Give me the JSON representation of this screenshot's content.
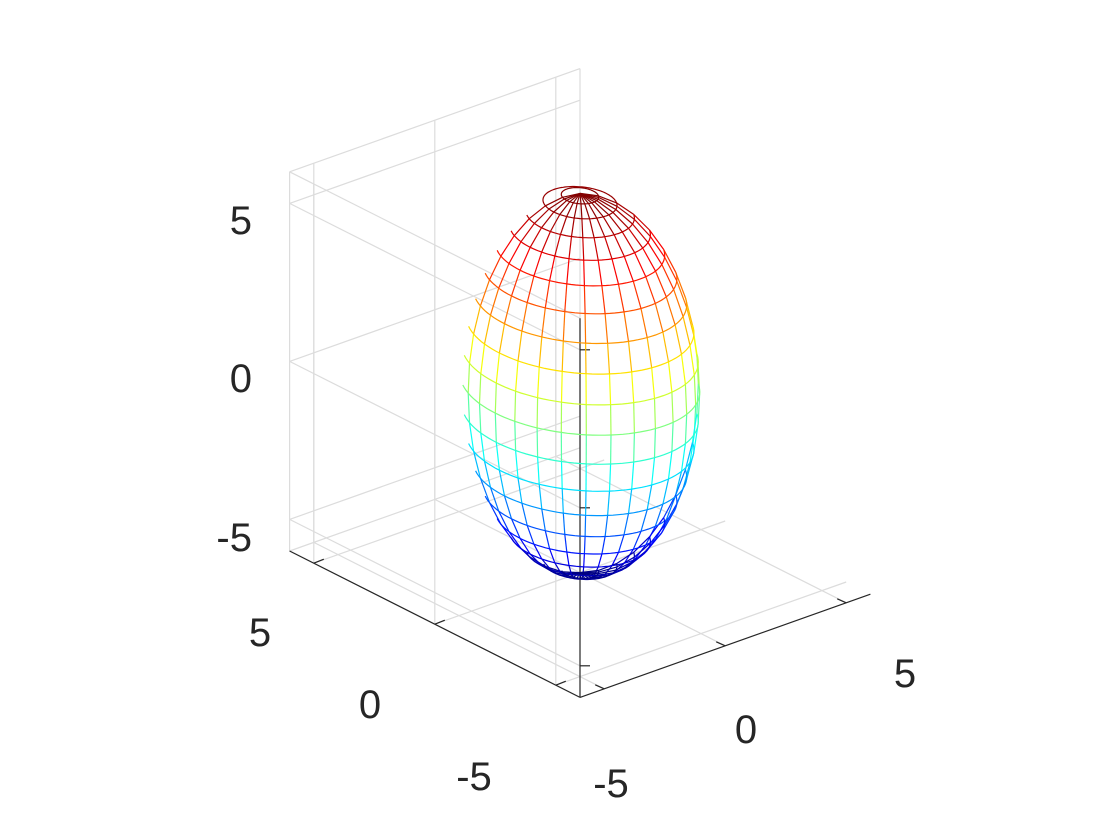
{
  "chart_data": {
    "type": "surface-mesh",
    "surface": "ellipsoid",
    "center": [
      0,
      0,
      0
    ],
    "semi_axes": {
      "x": 3.5,
      "y": 3.5,
      "z": 6
    },
    "mesh": {
      "meridians": 30,
      "parallels": 20
    },
    "colormap": "jet",
    "colors": [
      "#00008f",
      "#0000ff",
      "#00ffff",
      "#ffff00",
      "#ff0000",
      "#800000"
    ],
    "view": {
      "azimuth": -37.5,
      "elevation": 30
    },
    "box": true,
    "grid": true,
    "xlim": [
      -6,
      6
    ],
    "ylim": [
      -6,
      6
    ],
    "zlim": [
      -6,
      6
    ],
    "x_ticks": [
      "-5",
      "0",
      "5"
    ],
    "y_ticks": [
      "-5",
      "0",
      "5"
    ],
    "z_ticks": [
      "-5",
      "0",
      "5"
    ]
  }
}
